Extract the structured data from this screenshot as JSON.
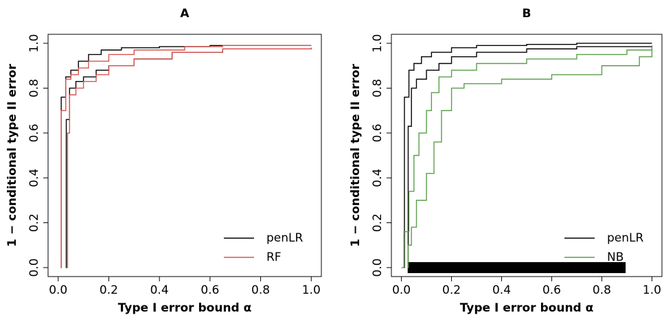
{
  "chart_data": [
    {
      "type": "step",
      "title": "A",
      "xlabel": "Type I error bound α",
      "ylabel": "1 − conditional type II error",
      "xlim": [
        -0.04,
        1.04
      ],
      "ylim": [
        -0.04,
        1.04
      ],
      "xticks": [
        {
          "value": 0,
          "label": "0.0"
        },
        0.2,
        0.4,
        0.6,
        0.8,
        {
          "value": 1,
          "label": "1.0"
        }
      ],
      "yticks": [
        {
          "value": 0,
          "label": "0.0"
        },
        0.2,
        0.4,
        0.6,
        0.8,
        {
          "value": 1,
          "label": "1.0"
        }
      ],
      "legend": "bottom-right",
      "series": [
        {
          "name": "penLR",
          "color": "#000000",
          "curves": [
            {
              "x": [
                0.01,
                0.012,
                0.03,
                0.05,
                0.08,
                0.12,
                0.17,
                0.25,
                0.4,
                0.6,
                1.0
              ],
              "values": [
                0,
                0.76,
                0.85,
                0.88,
                0.92,
                0.95,
                0.97,
                0.98,
                0.985,
                0.99,
                0.99
              ]
            },
            {
              "x": [
                0.03,
                0.032,
                0.045,
                0.07,
                0.1,
                0.15,
                0.2,
                0.3,
                0.45,
                0.65,
                1.0
              ],
              "values": [
                0,
                0.66,
                0.8,
                0.83,
                0.85,
                0.88,
                0.9,
                0.93,
                0.96,
                0.975,
                0.98
              ]
            }
          ]
        },
        {
          "name": "RF",
          "color": "#d9534f",
          "curves": [
            {
              "x": [
                0.01,
                0.012,
                0.03,
                0.05,
                0.08,
                0.12,
                0.2,
                0.3,
                0.5,
                0.65,
                1.0
              ],
              "values": [
                0,
                0.7,
                0.84,
                0.86,
                0.89,
                0.92,
                0.95,
                0.97,
                0.985,
                0.99,
                0.99
              ]
            },
            {
              "x": [
                0.035,
                0.037,
                0.045,
                0.07,
                0.1,
                0.15,
                0.2,
                0.3,
                0.45,
                0.65,
                1.0
              ],
              "values": [
                0,
                0.6,
                0.77,
                0.8,
                0.83,
                0.86,
                0.9,
                0.93,
                0.96,
                0.975,
                0.98
              ]
            }
          ]
        }
      ]
    },
    {
      "type": "step",
      "title": "B",
      "xlabel": "Type I error bound α",
      "ylabel": "1 − conditional type II error",
      "xlim": [
        -0.04,
        1.04
      ],
      "ylim": [
        -0.04,
        1.04
      ],
      "xticks": [
        {
          "value": 0,
          "label": "0.0"
        },
        0.2,
        0.4,
        0.6,
        0.8,
        {
          "value": 1,
          "label": "1.0"
        }
      ],
      "yticks": [
        {
          "value": 0,
          "label": "0.0"
        },
        0.2,
        0.4,
        0.6,
        0.8,
        {
          "value": 1,
          "label": "1.0"
        }
      ],
      "legend": "bottom-right",
      "band_x": [
        0.025,
        0.895
      ],
      "series": [
        {
          "name": "penLR",
          "color": "#000000",
          "curves": [
            {
              "x": [
                0.01,
                0.012,
                0.03,
                0.05,
                0.08,
                0.12,
                0.2,
                0.3,
                0.5,
                0.7,
                1.0
              ],
              "values": [
                0,
                0.76,
                0.88,
                0.91,
                0.94,
                0.96,
                0.98,
                0.99,
                0.995,
                1.0,
                1.0
              ]
            },
            {
              "x": [
                0.025,
                0.027,
                0.04,
                0.06,
                0.1,
                0.15,
                0.2,
                0.3,
                0.5,
                0.7,
                1.0
              ],
              "values": [
                0,
                0.63,
                0.8,
                0.84,
                0.88,
                0.91,
                0.94,
                0.96,
                0.975,
                0.985,
                0.99
              ]
            }
          ]
        },
        {
          "name": "NB",
          "color": "#5a9e4b",
          "curves": [
            {
              "x": [
                0,
                0.01,
                0.03,
                0.05,
                0.07,
                0.1,
                0.12,
                0.15,
                0.2,
                0.3,
                0.5,
                0.7,
                0.9,
                1.0
              ],
              "values": [
                0,
                0.16,
                0.34,
                0.5,
                0.6,
                0.7,
                0.78,
                0.85,
                0.88,
                0.91,
                0.93,
                0.95,
                0.97,
                0.99
              ]
            },
            {
              "x": [
                0.025,
                0.027,
                0.04,
                0.06,
                0.1,
                0.13,
                0.16,
                0.2,
                0.25,
                0.4,
                0.6,
                0.8,
                0.95,
                1.0
              ],
              "values": [
                0,
                0.1,
                0.18,
                0.3,
                0.42,
                0.56,
                0.7,
                0.8,
                0.82,
                0.84,
                0.86,
                0.9,
                0.94,
                0.98
              ]
            }
          ]
        }
      ]
    }
  ]
}
